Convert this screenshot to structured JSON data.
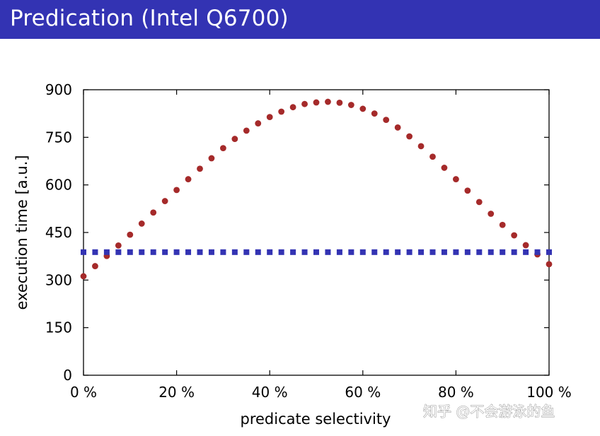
{
  "header": {
    "title": "Predication (Intel Q6700)"
  },
  "watermark": {
    "text": "知乎 @不会游泳的鱼"
  },
  "colors": {
    "header_bg": "#3333b3",
    "branching_series": "#a52a2a",
    "predication_series": "#3333b3"
  },
  "chart_data": {
    "type": "scatter",
    "title": "",
    "xlabel": "predicate selectivity",
    "ylabel": "execution time [a.u.]",
    "xlim": [
      0,
      100
    ],
    "ylim": [
      0,
      900
    ],
    "xticks": [
      0,
      20,
      40,
      60,
      80,
      100
    ],
    "xtick_labels": [
      "0 %",
      "20 %",
      "40 %",
      "60 %",
      "80 %",
      "100 %"
    ],
    "yticks": [
      0,
      150,
      300,
      450,
      600,
      750,
      900
    ],
    "ytick_labels": [
      "0",
      "150",
      "300",
      "450",
      "600",
      "750",
      "900"
    ],
    "grid": false,
    "legend": "none",
    "series": [
      {
        "marker": "circle",
        "x": [
          0,
          2.5,
          5,
          7.5,
          10,
          12.5,
          15,
          17.5,
          20,
          22.5,
          25,
          27.5,
          30,
          32.5,
          35,
          37.5,
          40,
          42.5,
          45,
          47.5,
          50,
          52.5,
          55,
          57.5,
          60,
          62.5,
          65,
          67.5,
          70,
          72.5,
          75,
          77.5,
          80,
          82.5,
          85,
          87.5,
          90,
          92.5,
          95,
          97.5,
          100
        ],
        "y": [
          312,
          344,
          376,
          409,
          443,
          478,
          513,
          549,
          584,
          618,
          651,
          684,
          716,
          745,
          771,
          794,
          814,
          831,
          845,
          855,
          860,
          862,
          859,
          852,
          840,
          825,
          805,
          781,
          753,
          722,
          689,
          654,
          618,
          582,
          546,
          509,
          474,
          441,
          410,
          381,
          350
        ]
      },
      {
        "marker": "square",
        "x": [
          0,
          2.5,
          5,
          7.5,
          10,
          12.5,
          15,
          17.5,
          20,
          22.5,
          25,
          27.5,
          30,
          32.5,
          35,
          37.5,
          40,
          42.5,
          45,
          47.5,
          50,
          52.5,
          55,
          57.5,
          60,
          62.5,
          65,
          67.5,
          70,
          72.5,
          75,
          77.5,
          80,
          82.5,
          85,
          87.5,
          90,
          92.5,
          95,
          97.5,
          100
        ],
        "y": [
          388,
          388,
          388,
          388,
          388,
          388,
          388,
          388,
          388,
          388,
          388,
          388,
          388,
          388,
          388,
          388,
          388,
          388,
          388,
          388,
          388,
          388,
          388,
          388,
          388,
          388,
          388,
          388,
          388,
          388,
          388,
          388,
          388,
          388,
          388,
          388,
          388,
          388,
          388,
          388,
          388
        ]
      }
    ]
  }
}
